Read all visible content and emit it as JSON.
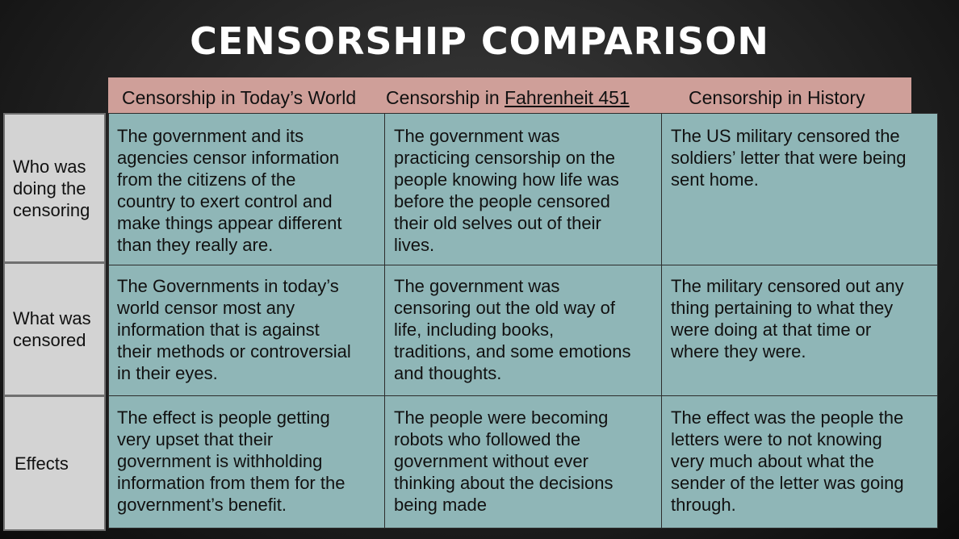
{
  "title": "CENSORSHIP COMPARISON",
  "columns": [
    {
      "label": "Censorship in Today’s World"
    },
    {
      "prefix": "Censorship in ",
      "underlined": "Fahrenheit 451"
    },
    {
      "label": "Censorship in History"
    }
  ],
  "rows": [
    {
      "label": "Who was\ndoing the\ncensoring",
      "cells": [
        "The government and its\nagencies censor information\nfrom the citizens of the\ncountry to exert control and\nmake things appear different\nthan they really are.",
        "The government was\npracticing censorship on the\npeople knowing how life was\nbefore the people censored\ntheir old selves out of their\nlives.",
        "The US military censored the\nsoldiers’ letter that were being\nsent home."
      ]
    },
    {
      "label": "What was\ncensored",
      "cells": [
        "The Governments in today’s\nworld censor most any\ninformation that is against\ntheir methods or controversial\nin their eyes.",
        "The government was\ncensoring out the old way of\nlife, including books,\ntraditions, and some emotions\nand thoughts.",
        "The military censored out any\nthing pertaining to what they\nwere doing at that time or\nwhere they were."
      ]
    },
    {
      "label": "Effects",
      "cells": [
        "The effect is people getting\nvery upset that their\ngovernment is withholding\ninformation from them for the\ngovernment’s benefit.",
        "The people were becoming\nrobots who followed the\ngovernment without ever\nthinking about the decisions\nbeing made",
        "The effect was the people the\nletters were to not knowing\nvery much about what the\nsender of the letter was going\nthrough."
      ]
    }
  ]
}
